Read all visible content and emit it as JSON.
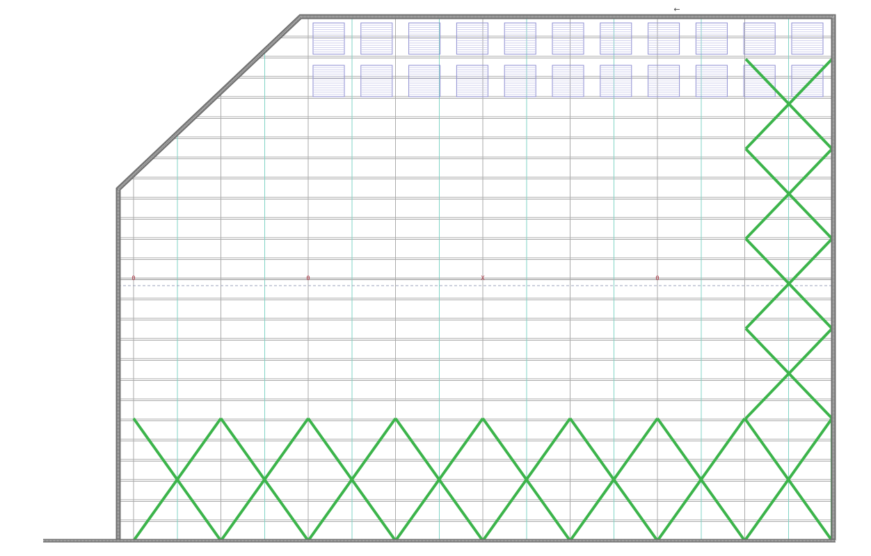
{
  "drawing": {
    "type": "plan-view-structural-framing",
    "top_arrow_glyph": "←",
    "section_markers": [
      "0",
      "0",
      "X",
      "0"
    ],
    "purlin_row_count": 25,
    "skylight_panel_columns": 11,
    "skylight_panel_rows": 2,
    "bracing_bays_bottom": 8,
    "bracing_bays_right": 4,
    "icons": [
      "wall-outline",
      "bracing-x",
      "skylight-panel",
      "section-marker",
      "direction-arrow"
    ]
  },
  "colors": {
    "background": "#ffffff",
    "purlin": "#a9a9a9",
    "column_line": "#7fd3c4",
    "wall_outer": "#707070",
    "wall_fill": "#c4c4c4",
    "bracing": "#3cb44b",
    "skylight_border": "#8a8ad0",
    "skylight_line": "#b9b9e4",
    "marker": "#b03a48",
    "dashed_line": "#9aa0b8",
    "arrow": "#444444"
  }
}
